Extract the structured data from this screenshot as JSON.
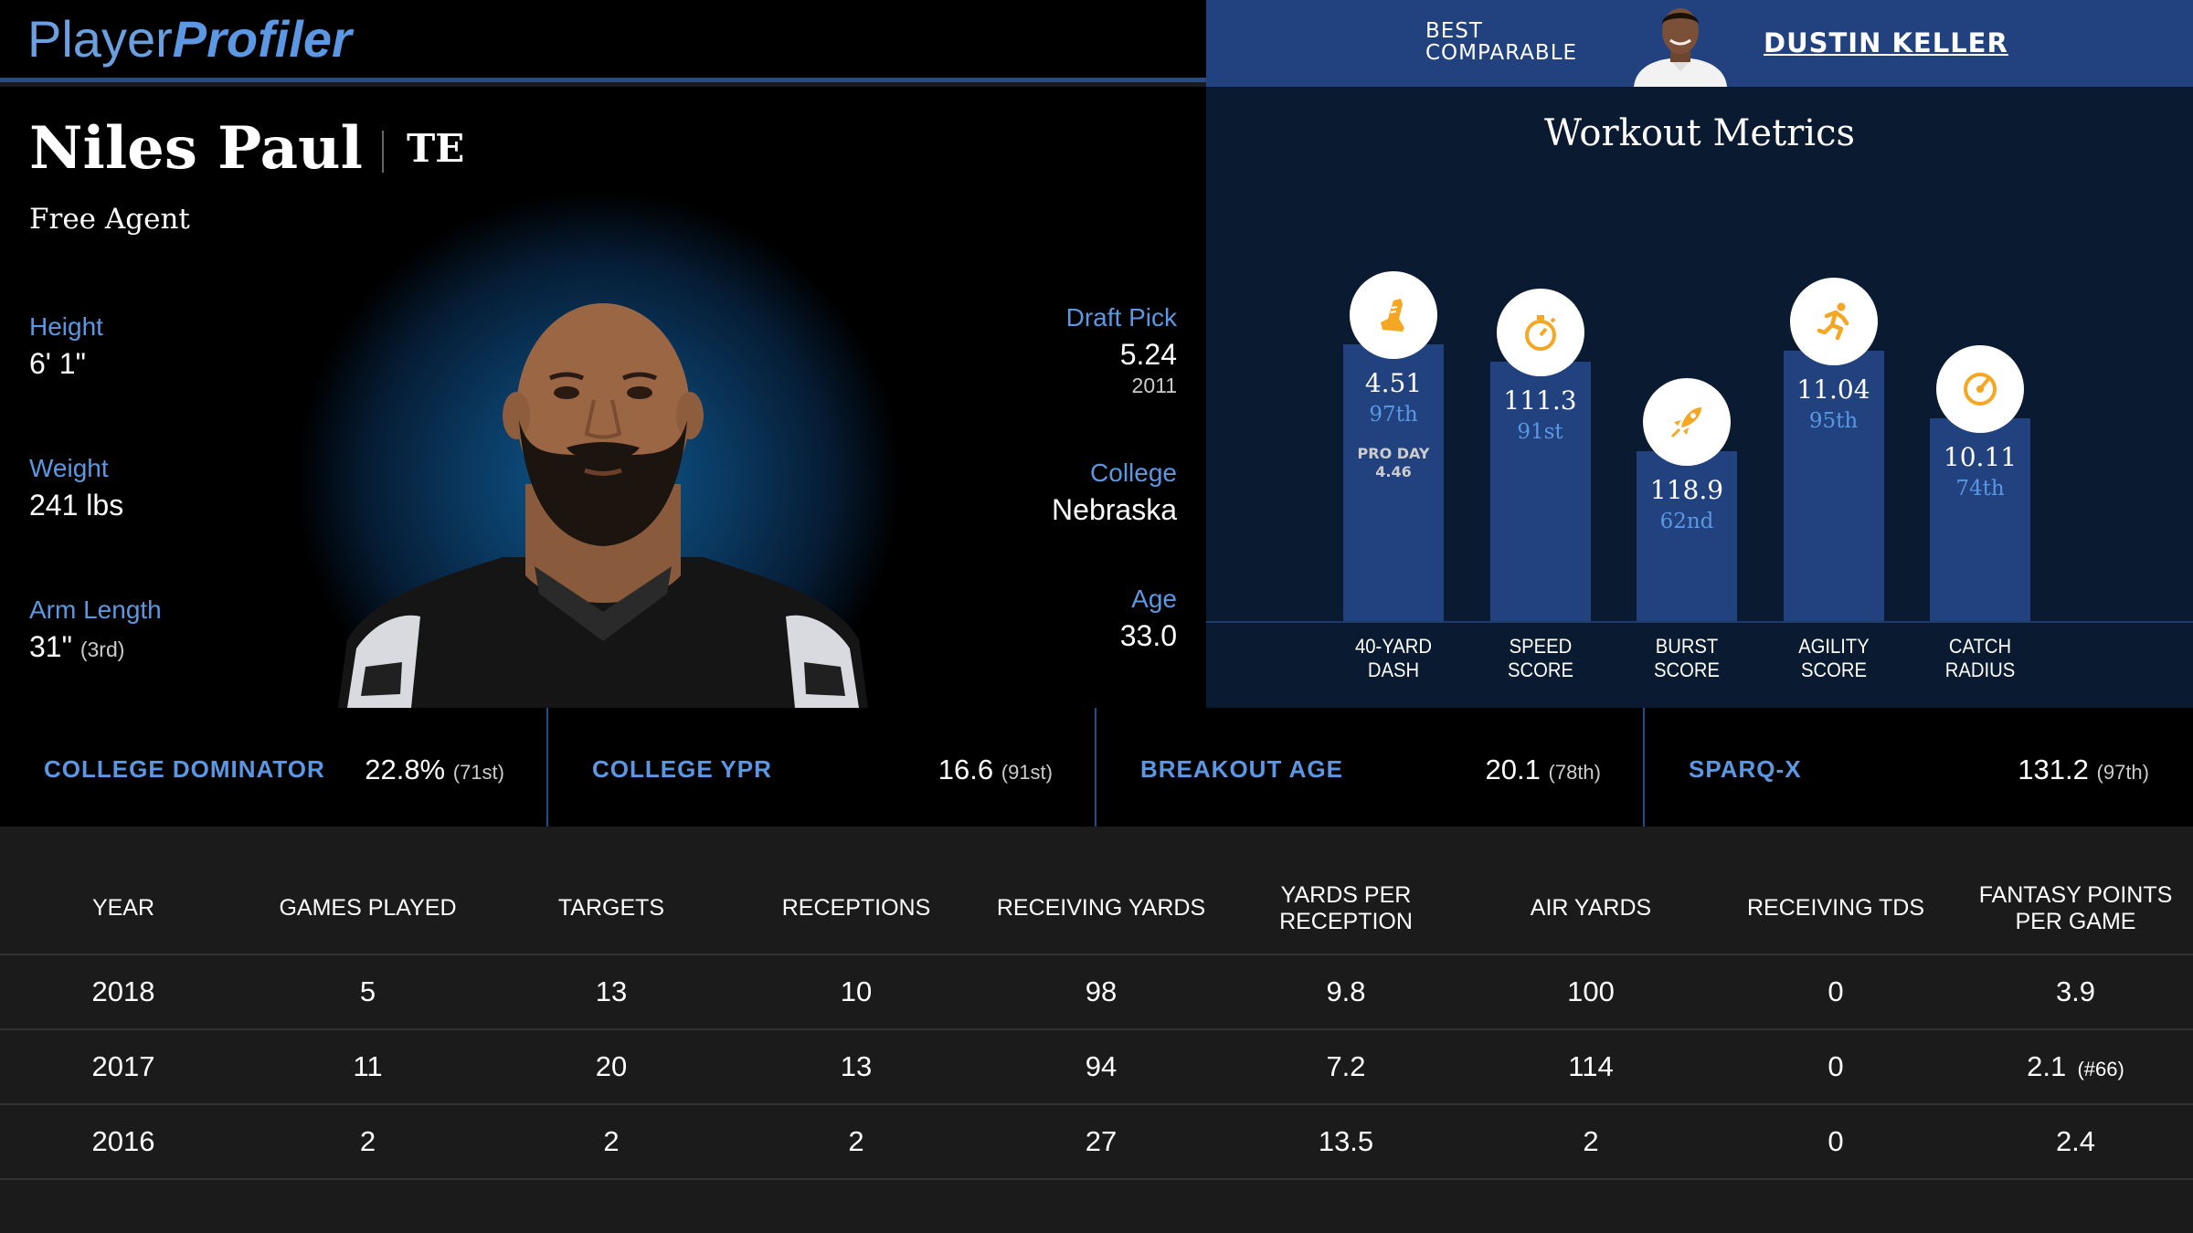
{
  "header": {
    "logo_part1": "Player",
    "logo_part2": "Profiler",
    "comparable_label_line1": "BEST",
    "comparable_label_line2": "COMPARABLE",
    "comparable_name": "DUSTIN KELLER"
  },
  "player": {
    "name": "Niles Paul",
    "position": "TE",
    "team": "Free Agent",
    "height_label": "Height",
    "height": "6' 1\"",
    "weight_label": "Weight",
    "weight": "241 lbs",
    "arm_label": "Arm Length",
    "arm": "31\"",
    "arm_rank": "(3rd)",
    "draft_label": "Draft Pick",
    "draft_pick": "5.24",
    "draft_year": "2011",
    "college_label": "College",
    "college": "Nebraska",
    "age_label": "Age",
    "age": "33.0"
  },
  "workout": {
    "title": "Workout Metrics",
    "metrics": [
      {
        "value": "4.51",
        "percentile": "97th",
        "extra1": "PRO DAY",
        "extra2": "4.46",
        "label1": "40-YARD",
        "label2": "DASH",
        "icon": "shoe-icon",
        "fill": 0.97
      },
      {
        "value": "111.3",
        "percentile": "91st",
        "extra1": "",
        "extra2": "",
        "label1": "SPEED",
        "label2": "SCORE",
        "icon": "stopwatch-icon",
        "fill": 0.91
      },
      {
        "value": "118.9",
        "percentile": "62nd",
        "extra1": "",
        "extra2": "",
        "label1": "BURST",
        "label2": "SCORE",
        "icon": "rocket-icon",
        "fill": 0.62
      },
      {
        "value": "11.04",
        "percentile": "95th",
        "extra1": "",
        "extra2": "",
        "label1": "AGILITY",
        "label2": "SCORE",
        "icon": "runner-icon",
        "fill": 0.95
      },
      {
        "value": "10.11",
        "percentile": "74th",
        "extra1": "",
        "extra2": "",
        "label1": "CATCH",
        "label2": "RADIUS",
        "icon": "target-icon",
        "fill": 0.74
      }
    ]
  },
  "metrics": [
    {
      "label": "COLLEGE DOMINATOR",
      "value": "22.8%",
      "rank": "(71st)"
    },
    {
      "label": "COLLEGE YPR",
      "value": "16.6",
      "rank": "(91st)"
    },
    {
      "label": "BREAKOUT AGE",
      "value": "20.1",
      "rank": "(78th)"
    },
    {
      "label": "SPARQ-X",
      "value": "131.2",
      "rank": "(97th)"
    }
  ],
  "stats": {
    "columns": [
      "YEAR",
      "GAMES PLAYED",
      "TARGETS",
      "RECEPTIONS",
      "RECEIVING YARDS",
      "YARDS PER RECEPTION",
      "AIR YARDS",
      "RECEIVING TDS",
      "FANTASY POINTS PER GAME"
    ],
    "rows": [
      [
        "2018",
        "5",
        "13",
        "10",
        "98",
        "9.8",
        "100",
        "0",
        "3.9",
        ""
      ],
      [
        "2017",
        "11",
        "20",
        "13",
        "94",
        "7.2",
        "114",
        "0",
        "2.1",
        "(#66)"
      ],
      [
        "2016",
        "2",
        "2",
        "2",
        "27",
        "13.5",
        "2",
        "0",
        "2.4",
        ""
      ]
    ]
  },
  "colors": {
    "accent": "#5b97e3",
    "bar": "#21427e",
    "icon": "#f5a623"
  }
}
